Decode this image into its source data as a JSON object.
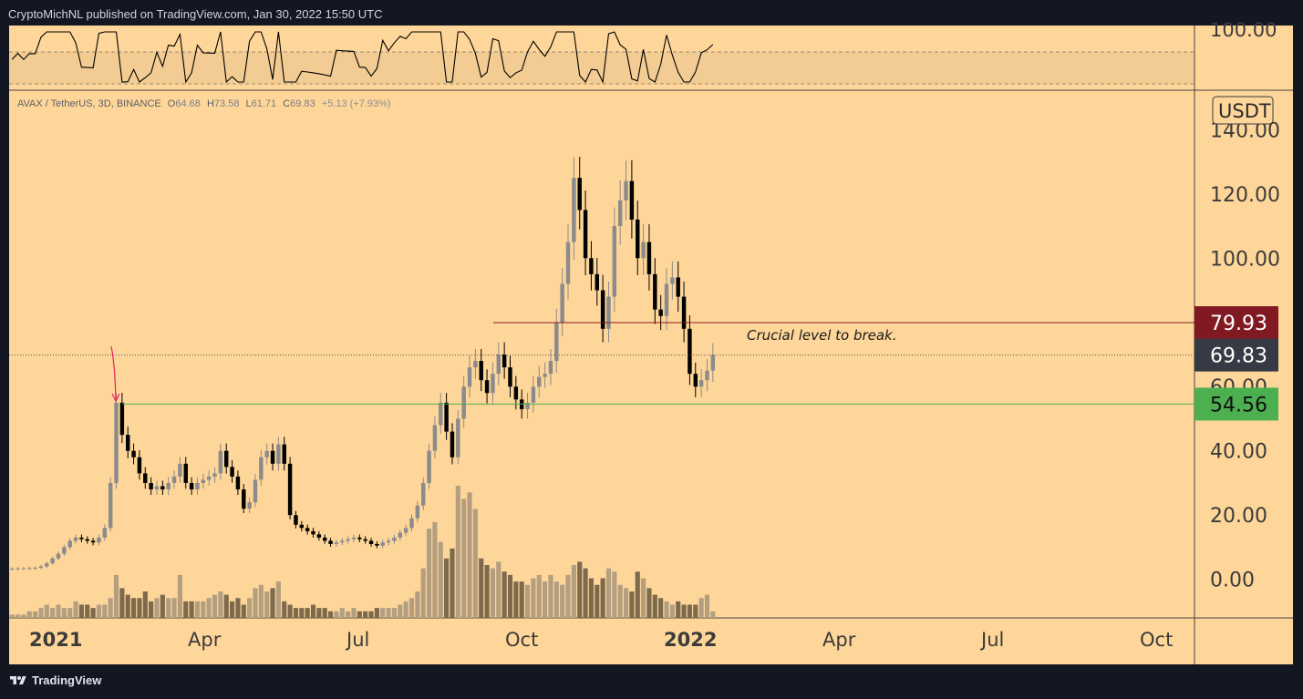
{
  "header": {
    "publisher_text": "CryptoMichNL published on TradingView.com, Jan 30, 2022 15:50 UTC"
  },
  "footer": {
    "brand": "TradingView"
  },
  "legend": {
    "symbol": "AVAX / TetherUS, 3D, BINANCE",
    "o_label": "O",
    "o_value": "64.68",
    "h_label": "H",
    "h_value": "73.58",
    "l_label": "L",
    "l_value": "61.71",
    "c_label": "C",
    "c_value": "69.83",
    "change": "+5.13 (+7.93%)"
  },
  "rsi_panel": {
    "axis_label": "100.00"
  },
  "price_axis": {
    "unit": "USDT",
    "ticks": [
      "140.00",
      "120.00",
      "100.00",
      "80.00",
      "60.00",
      "40.00",
      "20.00",
      "0.00"
    ]
  },
  "time_axis": {
    "ticks": [
      "2021",
      "Apr",
      "Jul",
      "Oct",
      "2022",
      "Apr",
      "Jul",
      "Oct"
    ]
  },
  "price_labels": {
    "resistance": {
      "text": "79.93",
      "value": 79.93,
      "color": "#801922"
    },
    "last": {
      "text": "69.83",
      "value": 69.83,
      "color": "#363a45"
    },
    "support": {
      "text": "54.56",
      "value": 54.56,
      "color": "#4caf50"
    }
  },
  "annotation": {
    "text": "Crucial level to break."
  },
  "colors": {
    "background": "#ffd699",
    "frame": "#131722",
    "candle_up": "#8b8b8b",
    "candle_down": "#000000",
    "resistance_line": "#801922",
    "support_line": "#4caf50",
    "arrow": "#e91e63"
  },
  "chart_data": {
    "type": "candlestick",
    "title": "AVAX / TetherUS, 3D, BINANCE",
    "ylabel": "USDT",
    "ylim": [
      -12,
      152
    ],
    "x_ticks": [
      "2021",
      "Apr",
      "Jul",
      "Oct",
      "2022",
      "Apr",
      "Jul",
      "Oct"
    ],
    "horizontal_levels": [
      {
        "value": 79.93,
        "style": "solid"
      },
      {
        "value": 54.56,
        "style": "solid"
      },
      {
        "value": 69.83,
        "style": "dotted"
      }
    ],
    "close_series_approx": [
      3.3,
      3.4,
      3.4,
      3.5,
      3.6,
      4.0,
      5.0,
      6.5,
      8.0,
      10.0,
      12.0,
      13.0,
      12.5,
      12.0,
      11.5,
      13.0,
      16.0,
      30.0,
      55.0,
      45.0,
      40.0,
      38.0,
      33.0,
      30.0,
      28.0,
      29.0,
      28.0,
      30.0,
      32.0,
      36.0,
      30.0,
      28.0,
      30.0,
      31.0,
      32.0,
      33.0,
      40.0,
      35.0,
      32.0,
      28.0,
      22.0,
      24.0,
      31.0,
      38.0,
      40.0,
      36.0,
      42.0,
      36.0,
      20.0,
      17.0,
      16.0,
      15.0,
      14.0,
      13.0,
      12.0,
      11.0,
      11.5,
      12.0,
      12.5,
      13.0,
      12.5,
      12.0,
      11.0,
      10.5,
      11.5,
      12.0,
      13.0,
      14.5,
      16.0,
      19.0,
      23.0,
      30.0,
      40.0,
      48.0,
      55.0,
      46.0,
      38.0,
      50.0,
      60.0,
      66.0,
      68.0,
      62.0,
      58.0,
      64.0,
      70.0,
      66.0,
      60.0,
      56.0,
      53.0,
      55.0,
      60.0,
      63.0,
      64.0,
      68.0,
      80.0,
      92.0,
      105.0,
      125.0,
      115.0,
      100.0,
      95.0,
      90.0,
      78.0,
      88.0,
      110.0,
      118.0,
      124.0,
      112.0,
      100.0,
      105.0,
      95.0,
      84.0,
      82.0,
      92.0,
      94.0,
      88.0,
      78.0,
      64.0,
      60.0,
      62.0,
      65.0,
      69.83
    ],
    "volume_approx": [
      1,
      1,
      1,
      2,
      2,
      3,
      4,
      3,
      4,
      3,
      3,
      5,
      4,
      4,
      3,
      4,
      4,
      6,
      13,
      9,
      7,
      6,
      6,
      8,
      5,
      6,
      7,
      6,
      6,
      13,
      5,
      5,
      5,
      5,
      6,
      7,
      8,
      7,
      5,
      6,
      4,
      6,
      9,
      10,
      8,
      9,
      11,
      5,
      4,
      3,
      3,
      3,
      4,
      3,
      3,
      2,
      2,
      3,
      2,
      3,
      2,
      2,
      2,
      3,
      3,
      3,
      3,
      4,
      5,
      6,
      8,
      15,
      27,
      29,
      23,
      18,
      21,
      40,
      36,
      38,
      33,
      18,
      16,
      15,
      17,
      14,
      13,
      11,
      11,
      10,
      12,
      13,
      11,
      13,
      11,
      10,
      13,
      16,
      17,
      15,
      12,
      10,
      12,
      15,
      14,
      10,
      9,
      8,
      14,
      12,
      9,
      7,
      6,
      5,
      4,
      5,
      4,
      4,
      4,
      6,
      7,
      2
    ]
  }
}
